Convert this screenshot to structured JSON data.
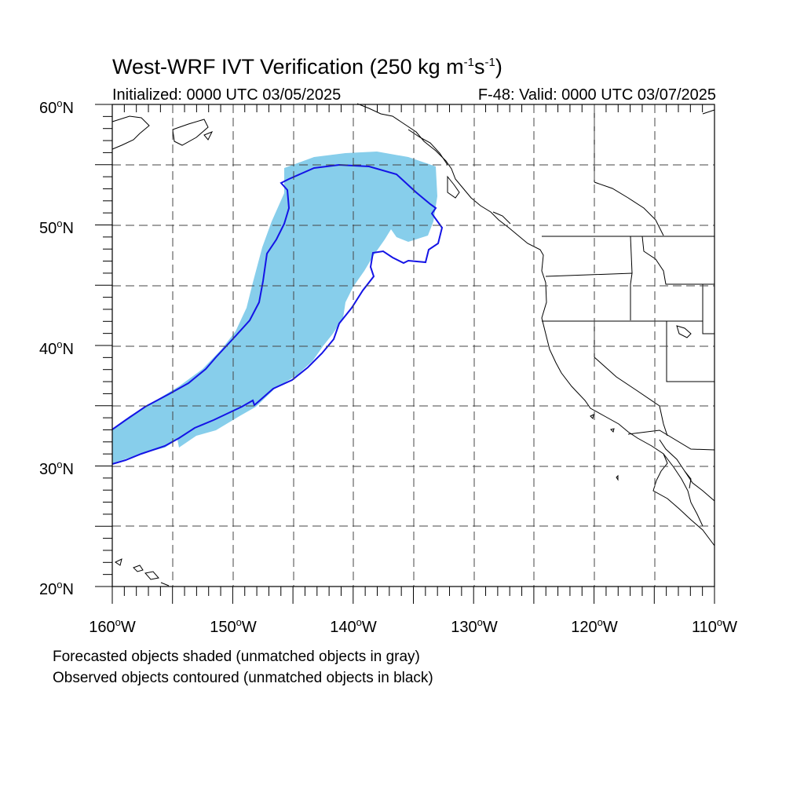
{
  "title": {
    "prefix": "West-WRF IVT Verification (250 kg m",
    "exp1": "-1",
    "mid": "s",
    "exp2": "-1",
    "suffix": ")"
  },
  "init_text": "Initialized: 0000 UTC 03/05/2025",
  "valid_text": "F-48: Valid: 0000 UTC 03/07/2025",
  "lat_labels": [
    {
      "deg": "60",
      "hemi": "N"
    },
    {
      "deg": "50",
      "hemi": "N"
    },
    {
      "deg": "40",
      "hemi": "N"
    },
    {
      "deg": "30",
      "hemi": "N"
    },
    {
      "deg": "20",
      "hemi": "N"
    }
  ],
  "lon_labels": [
    {
      "deg": "160",
      "hemi": "W"
    },
    {
      "deg": "150",
      "hemi": "W"
    },
    {
      "deg": "140",
      "hemi": "W"
    },
    {
      "deg": "130",
      "hemi": "W"
    },
    {
      "deg": "120",
      "hemi": "W"
    },
    {
      "deg": "110",
      "hemi": "W"
    }
  ],
  "legend": {
    "forecast_note": "Forecasted objects shaded (unmatched objects in gray)",
    "observed_note": "Observed objects contoured (unmatched objects in black)"
  },
  "colors": {
    "forecast_fill": "#87ceeb",
    "observed_contour": "#1414e6",
    "coastline": "#000000",
    "grid": "#444444"
  },
  "map_extent": {
    "lon_min": -160,
    "lon_max": -110,
    "lat_min": 20,
    "lat_max": 60
  }
}
